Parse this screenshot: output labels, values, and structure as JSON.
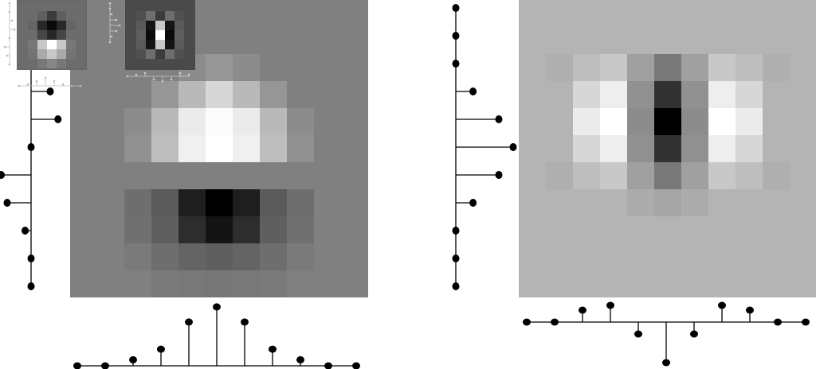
{
  "background_color": "#ffffff",
  "stem_color": "#000000",
  "panels": [
    {
      "id": "left",
      "image_background": "#808080",
      "image_gray_levels": [
        [
          128,
          128,
          128,
          128,
          128,
          128,
          128,
          128,
          128,
          128,
          128
        ],
        [
          128,
          128,
          128,
          128,
          128,
          128,
          128,
          128,
          128,
          128,
          128
        ],
        [
          128,
          128,
          128,
          128,
          140,
          150,
          140,
          128,
          128,
          128,
          128
        ],
        [
          128,
          128,
          128,
          150,
          185,
          215,
          185,
          150,
          128,
          128,
          128
        ],
        [
          128,
          128,
          140,
          185,
          235,
          252,
          235,
          185,
          140,
          128,
          128
        ],
        [
          128,
          128,
          145,
          190,
          240,
          255,
          240,
          190,
          145,
          128,
          128
        ],
        [
          128,
          128,
          128,
          128,
          128,
          128,
          128,
          128,
          128,
          128,
          128
        ],
        [
          128,
          128,
          110,
          90,
          30,
          0,
          30,
          90,
          110,
          128,
          128
        ],
        [
          128,
          128,
          112,
          95,
          45,
          20,
          45,
          95,
          112,
          128,
          128
        ],
        [
          128,
          128,
          122,
          110,
          100,
          95,
          100,
          110,
          122,
          128,
          128
        ],
        [
          128,
          128,
          128,
          122,
          120,
          118,
          120,
          122,
          128,
          128,
          128
        ]
      ],
      "vertical_profile": [
        0.0,
        0.0,
        0.0,
        0.32,
        0.45,
        0.0,
        -0.5,
        -0.4,
        -0.1,
        0.0,
        0.0
      ],
      "horizontal_profile": [
        0.0,
        0.0,
        0.08,
        0.22,
        0.58,
        0.78,
        0.58,
        0.22,
        0.08,
        0.0,
        0.0
      ]
    },
    {
      "id": "right",
      "image_background": "#b4b4b4",
      "image_gray_levels": [
        [
          180,
          180,
          180,
          180,
          180,
          180,
          180,
          180,
          180,
          180,
          180
        ],
        [
          180,
          180,
          180,
          180,
          180,
          180,
          180,
          180,
          180,
          180,
          180
        ],
        [
          180,
          175,
          190,
          200,
          160,
          120,
          160,
          200,
          190,
          175,
          180
        ],
        [
          180,
          180,
          215,
          238,
          145,
          50,
          145,
          238,
          215,
          180,
          180
        ],
        [
          180,
          180,
          235,
          255,
          140,
          0,
          140,
          255,
          235,
          180,
          180
        ],
        [
          180,
          180,
          215,
          238,
          145,
          50,
          145,
          238,
          215,
          180,
          180
        ],
        [
          180,
          175,
          190,
          200,
          160,
          120,
          160,
          200,
          190,
          175,
          180
        ],
        [
          180,
          180,
          180,
          180,
          172,
          165,
          172,
          180,
          180,
          180,
          180
        ],
        [
          180,
          180,
          180,
          180,
          180,
          180,
          180,
          180,
          180,
          180,
          180
        ],
        [
          180,
          180,
          180,
          180,
          180,
          180,
          180,
          180,
          180,
          180,
          180
        ],
        [
          180,
          180,
          180,
          180,
          180,
          180,
          180,
          180,
          180,
          180,
          180
        ]
      ],
      "vertical_profile": [
        0.0,
        0.0,
        0.0,
        0.3,
        0.75,
        1.0,
        0.75,
        0.3,
        0.0,
        0.0,
        0.0
      ],
      "horizontal_profile": [
        0.0,
        0.0,
        0.25,
        0.35,
        -0.25,
        -0.85,
        -0.25,
        0.35,
        0.25,
        0.0,
        0.0
      ]
    }
  ],
  "thumbnails": [
    {
      "id": "thumb-left",
      "frame_color": "#6b6860",
      "gray_levels": [
        [
          108,
          108,
          108,
          108,
          108,
          108,
          108
        ],
        [
          108,
          108,
          95,
          60,
          95,
          108,
          108
        ],
        [
          108,
          100,
          40,
          10,
          40,
          100,
          108
        ],
        [
          108,
          108,
          70,
          40,
          70,
          108,
          108
        ],
        [
          108,
          120,
          200,
          255,
          200,
          120,
          108
        ],
        [
          108,
          115,
          170,
          200,
          170,
          115,
          108
        ],
        [
          108,
          108,
          120,
          135,
          120,
          108,
          108
        ]
      ]
    },
    {
      "id": "thumb-right",
      "frame_color": "#4a4a44",
      "gray_levels": [
        [
          74,
          74,
          74,
          74,
          74,
          74,
          74
        ],
        [
          74,
          80,
          110,
          60,
          110,
          80,
          74
        ],
        [
          74,
          90,
          20,
          200,
          20,
          90,
          74
        ],
        [
          74,
          95,
          10,
          255,
          10,
          95,
          74
        ],
        [
          74,
          90,
          20,
          200,
          20,
          90,
          74
        ],
        [
          74,
          80,
          110,
          60,
          110,
          80,
          74
        ],
        [
          74,
          74,
          74,
          74,
          74,
          74,
          74
        ]
      ]
    }
  ]
}
